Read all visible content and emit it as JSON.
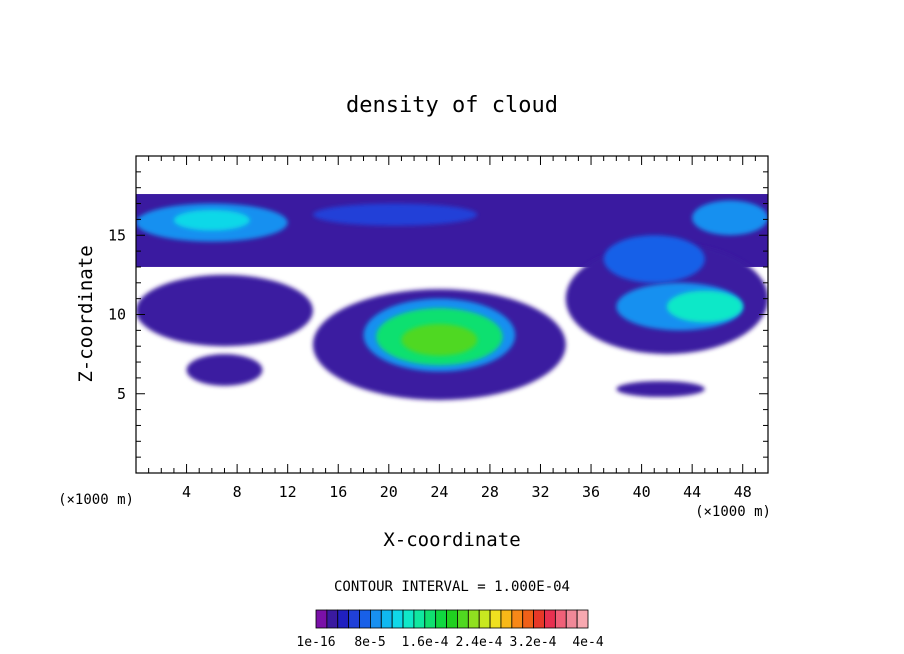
{
  "chart_data": {
    "type": "heatmap",
    "title": "density of cloud",
    "xlabel": "X-coordinate",
    "ylabel": "Z-coordinate",
    "x_unit_left": "(×1000 m)",
    "x_unit_right": "(×1000 m)",
    "xlim": [
      0,
      50
    ],
    "ylim": [
      0,
      20
    ],
    "x_ticks": [
      4,
      8,
      12,
      16,
      20,
      24,
      28,
      32,
      36,
      40,
      44,
      48
    ],
    "y_ticks": [
      5,
      10,
      15
    ],
    "contour_interval_label": "CONTOUR INTERVAL = 1.000E-04",
    "colorbar": {
      "colors": [
        "#7a10a8",
        "#3a1aa0",
        "#2020c0",
        "#2040d8",
        "#1860e8",
        "#1890f0",
        "#10b8f0",
        "#10d8e8",
        "#10e8c8",
        "#10e8a0",
        "#10e070",
        "#10d840",
        "#20d020",
        "#50d820",
        "#90e020",
        "#c8e820",
        "#f0e020",
        "#f8b818",
        "#f88818",
        "#f06018",
        "#e83828",
        "#e83050",
        "#f06078",
        "#f08898",
        "#f8a8b0"
      ],
      "tick_labels": [
        "1e-16",
        "8e-5",
        "1.6e-4",
        "2.4e-4",
        "3.2e-4",
        "4e-4"
      ]
    },
    "density_blobs": [
      {
        "region": "upper band",
        "x": [
          0,
          50
        ],
        "z": [
          13,
          17.6
        ],
        "level": 1
      },
      {
        "region": "upper-left core",
        "x": [
          0,
          12
        ],
        "z": [
          14.6,
          17
        ],
        "level": 5
      },
      {
        "region": "upper-left inner",
        "x": [
          3,
          9
        ],
        "z": [
          15.3,
          16.6
        ],
        "level": 7
      },
      {
        "region": "upper-mid core",
        "x": [
          14,
          27
        ],
        "z": [
          15.6,
          17
        ],
        "level": 3
      },
      {
        "region": "upper-right core",
        "x": [
          44,
          50
        ],
        "z": [
          15,
          17.2
        ],
        "level": 5
      },
      {
        "region": "left middle",
        "x": [
          0,
          14
        ],
        "z": [
          8,
          12.5
        ],
        "level": 1
      },
      {
        "region": "central cloud outer",
        "x": [
          14,
          34
        ],
        "z": [
          4.6,
          11.6
        ],
        "level": 1
      },
      {
        "region": "central cloud mid",
        "x": [
          18,
          30
        ],
        "z": [
          6.4,
          11
        ],
        "level": 5
      },
      {
        "region": "central cloud core",
        "x": [
          19,
          29
        ],
        "z": [
          6.8,
          10.4
        ],
        "level": 10
      },
      {
        "region": "central cloud peak",
        "x": [
          21,
          27
        ],
        "z": [
          7.4,
          9.4
        ],
        "level": 13
      },
      {
        "region": "right cloud outer",
        "x": [
          34,
          50
        ],
        "z": [
          7.5,
          14.5
        ],
        "level": 1
      },
      {
        "region": "right cloud upper",
        "x": [
          37,
          45
        ],
        "z": [
          12,
          15
        ],
        "level": 4
      },
      {
        "region": "right cloud lower",
        "x": [
          38,
          48
        ],
        "z": [
          9,
          12
        ],
        "level": 5
      },
      {
        "region": "right cloud core",
        "x": [
          42,
          48
        ],
        "z": [
          9.5,
          11.5
        ],
        "level": 8
      },
      {
        "region": "lower-left patch",
        "x": [
          4,
          10
        ],
        "z": [
          5.5,
          7.5
        ],
        "level": 1
      },
      {
        "region": "lower-right patch",
        "x": [
          38,
          45
        ],
        "z": [
          4.8,
          5.8
        ],
        "level": 1
      }
    ]
  }
}
